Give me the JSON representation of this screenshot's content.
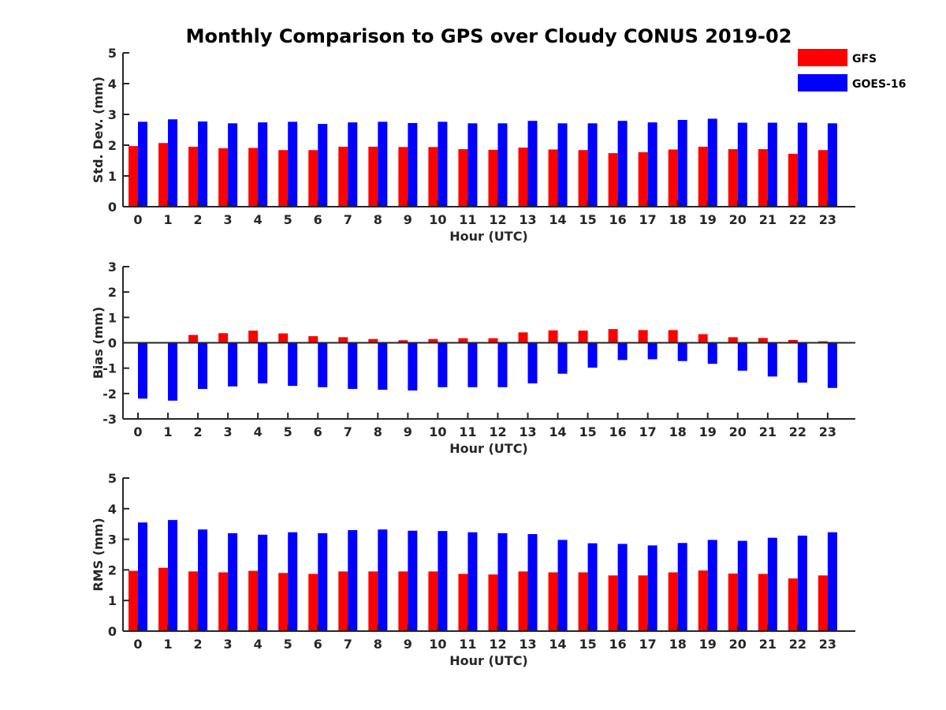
{
  "title": "Monthly Comparison to GPS over Cloudy CONUS 2019-02",
  "legend": [
    {
      "name": "GFS",
      "color": "#ff0000"
    },
    {
      "name": "GOES-16",
      "color": "#0000ff"
    }
  ],
  "chart_data": [
    {
      "type": "bar",
      "xlabel": "Hour (UTC)",
      "ylabel": "Std. Dev. (mm)",
      "ylim": [
        0,
        5
      ],
      "yticks": [
        0,
        1,
        2,
        3,
        4,
        5
      ],
      "categories": [
        "0",
        "1",
        "2",
        "3",
        "4",
        "5",
        "6",
        "7",
        "8",
        "9",
        "10",
        "11",
        "12",
        "13",
        "14",
        "15",
        "16",
        "17",
        "18",
        "19",
        "20",
        "21",
        "22",
        "23"
      ],
      "series": [
        {
          "name": "GFS",
          "color": "#ff0000",
          "values": [
            1.97,
            2.07,
            1.95,
            1.9,
            1.91,
            1.84,
            1.84,
            1.95,
            1.95,
            1.94,
            1.94,
            1.87,
            1.85,
            1.92,
            1.86,
            1.84,
            1.74,
            1.77,
            1.86,
            1.95,
            1.87,
            1.87,
            1.72,
            1.84
          ]
        },
        {
          "name": "GOES-16",
          "color": "#0000ff",
          "values": [
            2.76,
            2.84,
            2.77,
            2.71,
            2.74,
            2.76,
            2.69,
            2.74,
            2.76,
            2.72,
            2.76,
            2.71,
            2.71,
            2.79,
            2.71,
            2.71,
            2.79,
            2.74,
            2.82,
            2.86,
            2.73,
            2.73,
            2.73,
            2.71
          ]
        }
      ]
    },
    {
      "type": "bar",
      "xlabel": "Hour (UTC)",
      "ylabel": "Bias (mm)",
      "ylim": [
        -3,
        3
      ],
      "yticks": [
        -3,
        -2,
        -1,
        0,
        1,
        2,
        3
      ],
      "categories": [
        "0",
        "1",
        "2",
        "3",
        "4",
        "5",
        "6",
        "7",
        "8",
        "9",
        "10",
        "11",
        "12",
        "13",
        "14",
        "15",
        "16",
        "17",
        "18",
        "19",
        "20",
        "21",
        "22",
        "23"
      ],
      "series": [
        {
          "name": "GFS",
          "color": "#ff0000",
          "values": [
            0.0,
            0.03,
            0.31,
            0.38,
            0.48,
            0.37,
            0.26,
            0.22,
            0.15,
            0.1,
            0.15,
            0.18,
            0.18,
            0.41,
            0.49,
            0.48,
            0.54,
            0.5,
            0.5,
            0.34,
            0.22,
            0.19,
            0.11,
            0.06
          ]
        },
        {
          "name": "GOES-16",
          "color": "#0000ff",
          "values": [
            -2.2,
            -2.28,
            -1.82,
            -1.72,
            -1.6,
            -1.7,
            -1.75,
            -1.82,
            -1.85,
            -1.88,
            -1.75,
            -1.75,
            -1.75,
            -1.6,
            -1.22,
            -0.98,
            -0.68,
            -0.65,
            -0.72,
            -0.83,
            -1.1,
            -1.33,
            -1.57,
            -1.78
          ]
        }
      ]
    },
    {
      "type": "bar",
      "xlabel": "Hour (UTC)",
      "ylabel": "RMS (mm)",
      "ylim": [
        0,
        5
      ],
      "yticks": [
        0,
        1,
        2,
        3,
        4,
        5
      ],
      "categories": [
        "0",
        "1",
        "2",
        "3",
        "4",
        "5",
        "6",
        "7",
        "8",
        "9",
        "10",
        "11",
        "12",
        "13",
        "14",
        "15",
        "16",
        "17",
        "18",
        "19",
        "20",
        "21",
        "22",
        "23"
      ],
      "series": [
        {
          "name": "GFS",
          "color": "#ff0000",
          "values": [
            1.97,
            2.07,
            1.95,
            1.92,
            1.97,
            1.9,
            1.87,
            1.95,
            1.95,
            1.95,
            1.95,
            1.87,
            1.85,
            1.95,
            1.92,
            1.92,
            1.82,
            1.82,
            1.92,
            1.98,
            1.88,
            1.87,
            1.72,
            1.82
          ]
        },
        {
          "name": "GOES-16",
          "color": "#0000ff",
          "values": [
            3.55,
            3.63,
            3.32,
            3.2,
            3.15,
            3.23,
            3.2,
            3.3,
            3.32,
            3.28,
            3.27,
            3.23,
            3.2,
            3.17,
            2.98,
            2.87,
            2.85,
            2.8,
            2.88,
            2.98,
            2.95,
            3.05,
            3.12,
            3.23
          ]
        }
      ]
    }
  ]
}
